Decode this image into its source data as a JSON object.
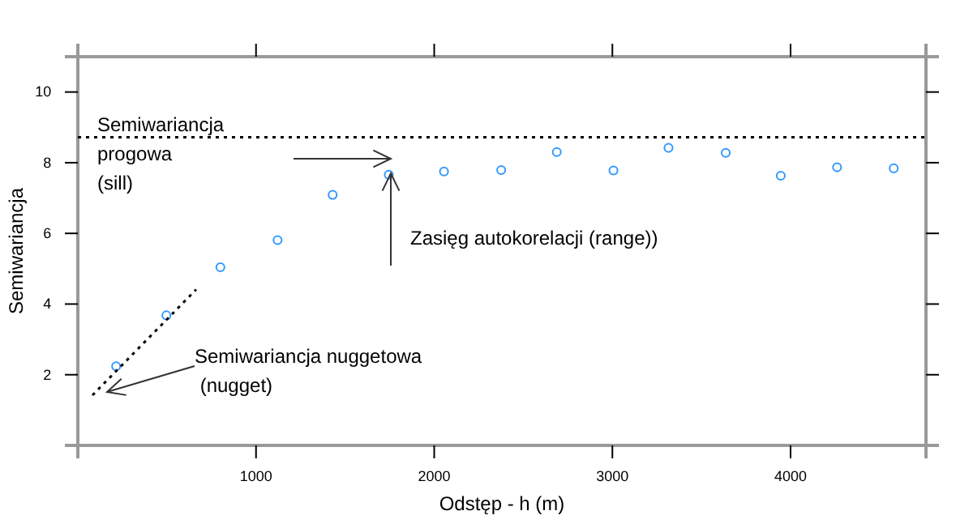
{
  "chart_data": {
    "type": "scatter",
    "xlabel": "Odstęp - h (m)",
    "ylabel": "Semiwariancja",
    "xlim": [
      0,
      4760
    ],
    "ylim": [
      0,
      11
    ],
    "xticks": [
      1000,
      2000,
      3000,
      4000
    ],
    "yticks": [
      2,
      4,
      6,
      8,
      10
    ],
    "grid": false,
    "line_style": "dotted",
    "series": [
      {
        "marker": "circle",
        "color": "#3399ff",
        "x": [
          215,
          497,
          800,
          1121,
          1430,
          1745,
          2055,
          2376,
          2688,
          3006,
          3315,
          3636,
          3945,
          4261,
          4579
        ],
        "values": [
          2.24,
          3.68,
          5.04,
          5.81,
          7.09,
          7.66,
          7.75,
          7.79,
          8.3,
          7.78,
          8.42,
          8.28,
          7.63,
          7.87,
          7.84
        ]
      },
      {
        "type": "line",
        "color": "#000000",
        "x": [
          82,
          664
        ],
        "values": [
          1.42,
          4.41
        ]
      }
    ],
    "ref_lines": [
      {
        "axis": "y",
        "value": 8.72,
        "color": "#000000",
        "line_style": "dotted"
      }
    ],
    "annotations": [
      "Semiwariancja\nprogowa\n(sill)",
      "Zasięg autokorelacji (range))",
      "Semiwariancja nuggetowa\n (nugget)"
    ]
  }
}
